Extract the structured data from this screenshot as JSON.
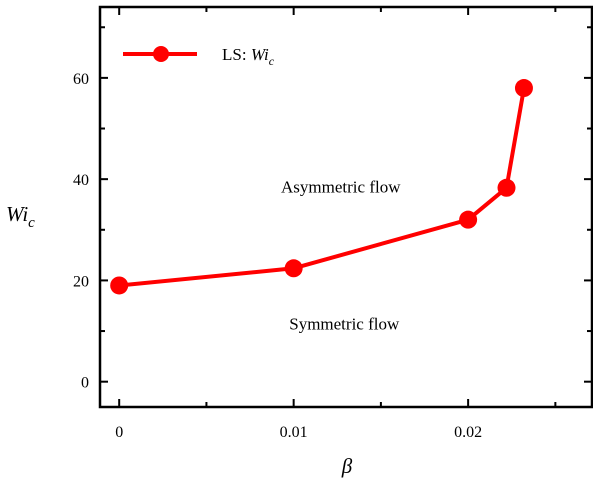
{
  "chart_data": {
    "type": "line",
    "xlabel": "β",
    "ylabel": {
      "base": "Wi",
      "sub": "c"
    },
    "xlim": [
      -0.0011,
      0.0271
    ],
    "ylim": [
      -5,
      74
    ],
    "x_ticks": [
      0,
      0.01,
      0.02
    ],
    "x_tick_labels": [
      "0",
      "0.01",
      "0.02"
    ],
    "y_ticks": [
      0,
      20,
      40,
      60
    ],
    "y_tick_labels": [
      "0",
      "20",
      "40",
      "60"
    ],
    "grid": false,
    "legend_position": "top-left",
    "series": [
      {
        "name": "LS: Wi_c",
        "legend_prefix": "LS: ",
        "legend_base": "Wi",
        "legend_sub": "c",
        "color": "#ff0000",
        "marker": "circle",
        "x": [
          0,
          0.01,
          0.02,
          0.0222,
          0.0232
        ],
        "y": [
          19,
          22.4,
          32,
          38.3,
          58
        ]
      }
    ],
    "annotations": [
      {
        "text": "Asymmetric flow",
        "x": 0.0127,
        "y": 38.5
      },
      {
        "text": "Symmetric flow",
        "x": 0.0129,
        "y": 11.5
      }
    ]
  },
  "colors": {
    "axis": "#000000",
    "series": "#ff0000",
    "background": "#ffffff"
  }
}
